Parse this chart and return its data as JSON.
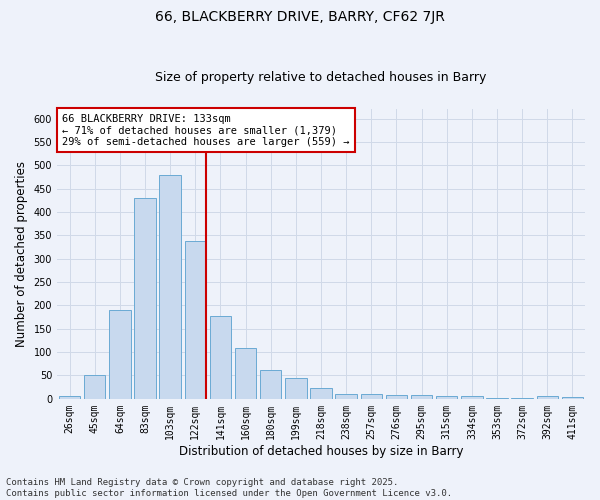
{
  "title": "66, BLACKBERRY DRIVE, BARRY, CF62 7JR",
  "subtitle": "Size of property relative to detached houses in Barry",
  "xlabel": "Distribution of detached houses by size in Barry",
  "ylabel": "Number of detached properties",
  "categories": [
    "26sqm",
    "45sqm",
    "64sqm",
    "83sqm",
    "103sqm",
    "122sqm",
    "141sqm",
    "160sqm",
    "180sqm",
    "199sqm",
    "218sqm",
    "238sqm",
    "257sqm",
    "276sqm",
    "295sqm",
    "315sqm",
    "334sqm",
    "353sqm",
    "372sqm",
    "392sqm",
    "411sqm"
  ],
  "values": [
    5,
    50,
    190,
    430,
    480,
    338,
    178,
    108,
    62,
    45,
    23,
    11,
    11,
    8,
    8,
    5,
    5,
    2,
    2,
    6,
    3
  ],
  "bar_color": "#c8d9ee",
  "bar_edge_color": "#6aaad4",
  "grid_color": "#d0d9e8",
  "background_color": "#eef2fa",
  "annotation_box_color": "#ffffff",
  "annotation_border_color": "#cc0000",
  "annotation_text_line1": "66 BLACKBERRY DRIVE: 133sqm",
  "annotation_text_line2": "← 71% of detached houses are smaller (1,379)",
  "annotation_text_line3": "29% of semi-detached houses are larger (559) →",
  "vline_color": "#cc0000",
  "vline_x": 5.43,
  "ylim": [
    0,
    620
  ],
  "yticks": [
    0,
    50,
    100,
    150,
    200,
    250,
    300,
    350,
    400,
    450,
    500,
    550,
    600
  ],
  "footer_line1": "Contains HM Land Registry data © Crown copyright and database right 2025.",
  "footer_line2": "Contains public sector information licensed under the Open Government Licence v3.0.",
  "title_fontsize": 10,
  "subtitle_fontsize": 9,
  "axis_label_fontsize": 8.5,
  "tick_fontsize": 7,
  "annotation_fontsize": 7.5,
  "footer_fontsize": 6.5
}
